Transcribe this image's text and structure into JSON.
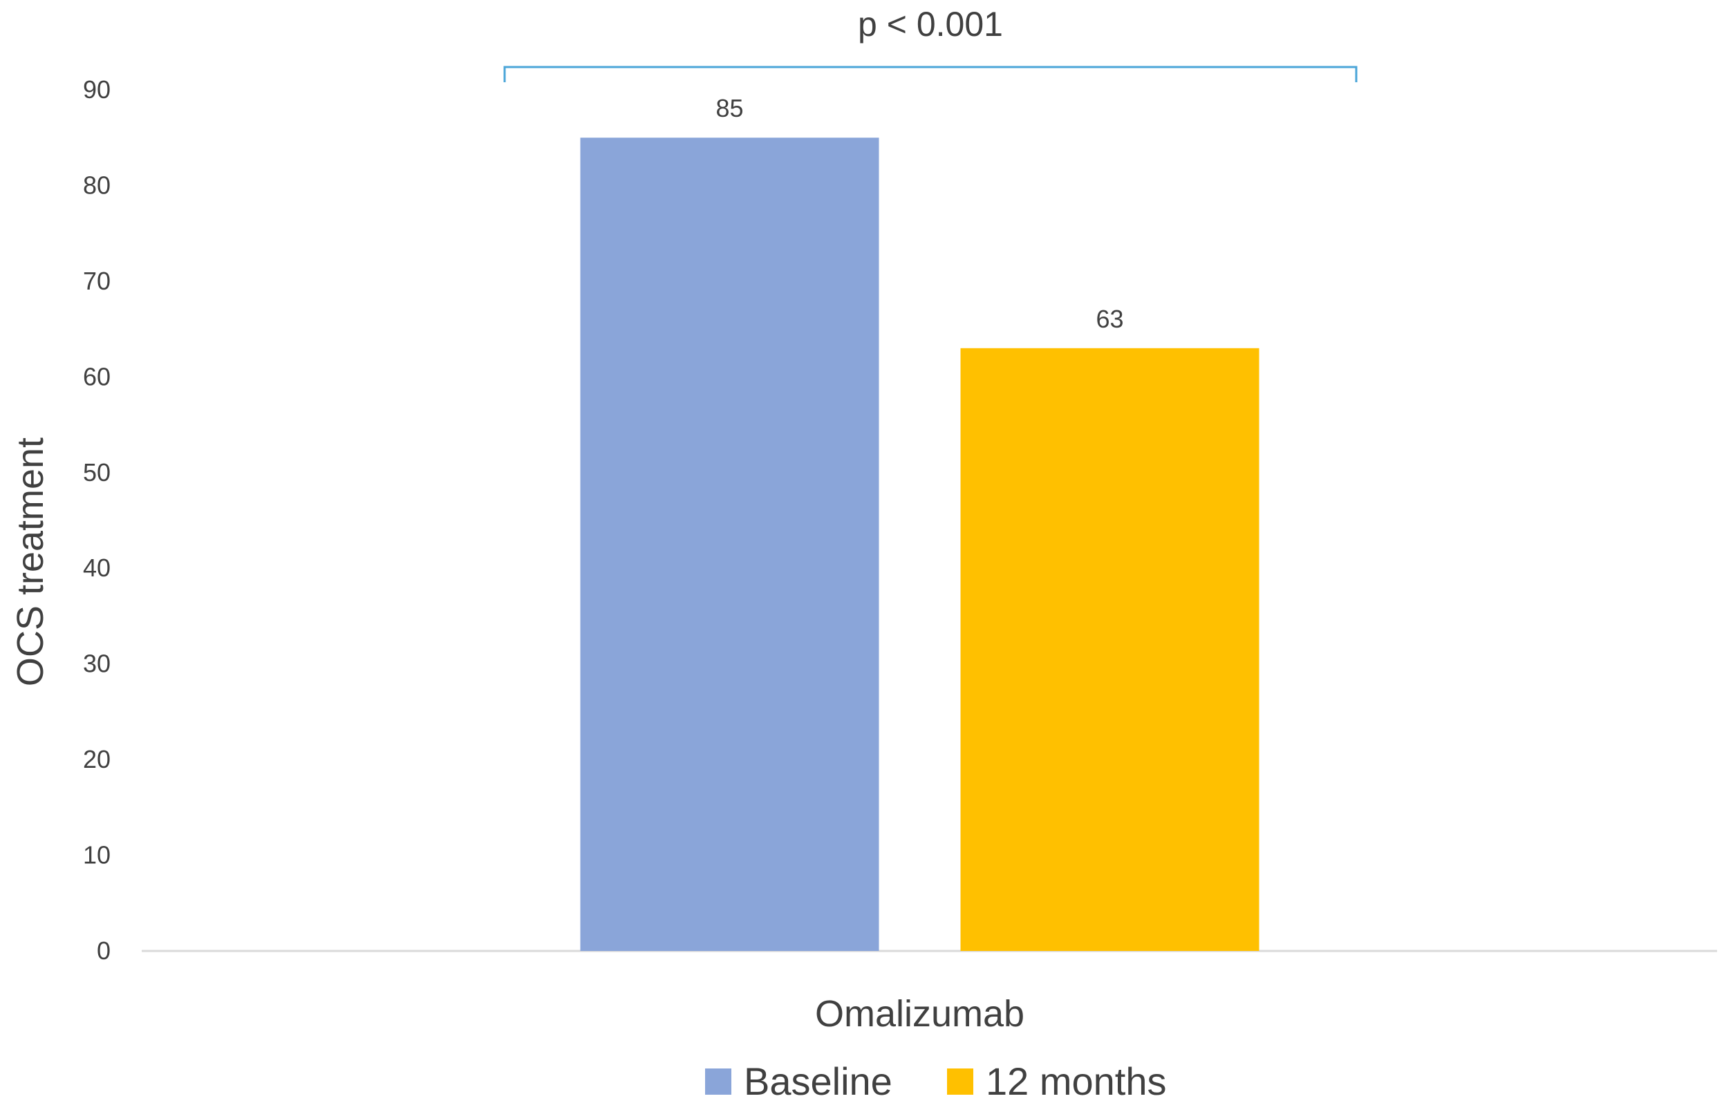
{
  "chart_data": {
    "type": "bar",
    "categories": [
      "Omalizumab"
    ],
    "series": [
      {
        "name": "Baseline",
        "values": [
          85
        ],
        "color": "#8aa5d9"
      },
      {
        "name": "12 months",
        "values": [
          63
        ],
        "color": "#ffc000"
      }
    ],
    "title": "",
    "xlabel": "",
    "ylabel": "OCS treatment",
    "ylim": [
      0,
      90
    ],
    "yticks": [
      0,
      10,
      20,
      30,
      40,
      50,
      60,
      70,
      80,
      90
    ],
    "data_labels": [
      "85",
      "63"
    ],
    "grid": false,
    "legend_position": "bottom",
    "annotation": {
      "text": "p < 0.001",
      "color": "#4aa5d8"
    }
  }
}
